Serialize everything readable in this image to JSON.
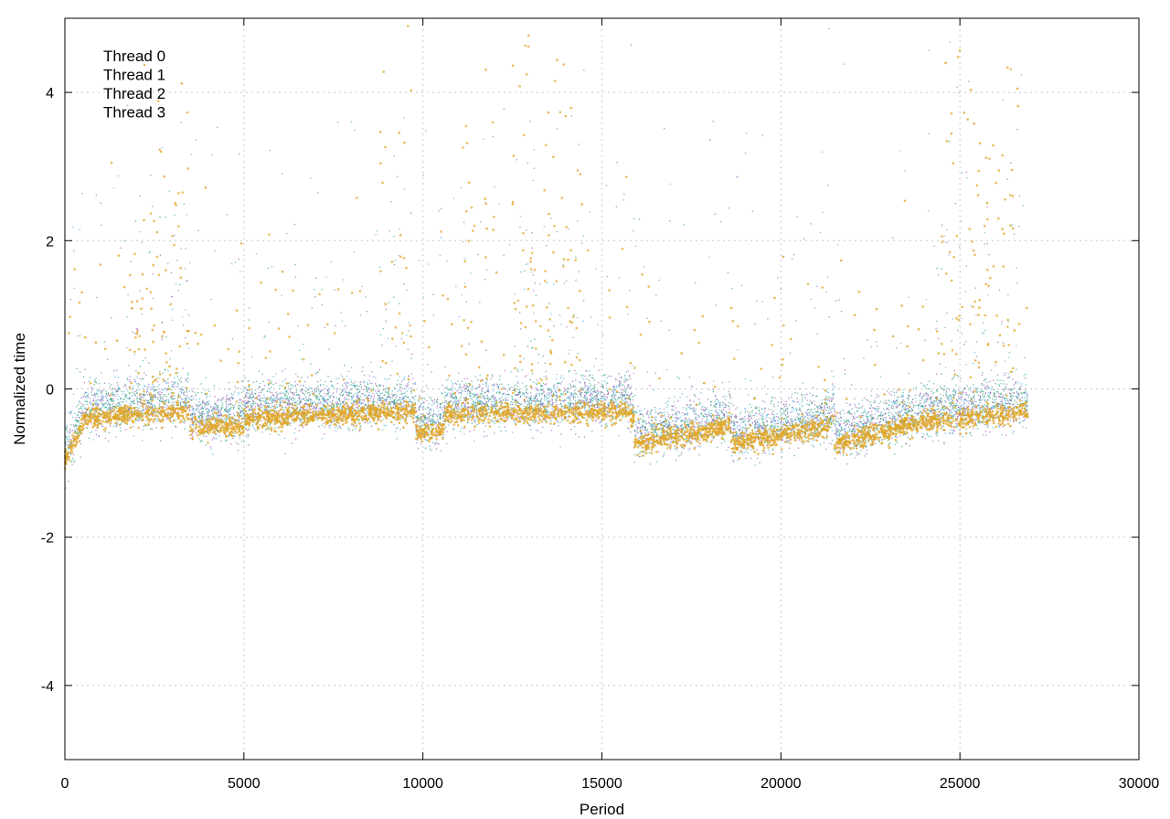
{
  "chart_data": {
    "type": "scatter",
    "title": "",
    "xlabel": "Period",
    "ylabel": "Normalized time",
    "xlim": [
      0,
      30000
    ],
    "ylim": [
      -5,
      5
    ],
    "grid": true,
    "legend_placement": "top-left",
    "x_ticks": [
      "0",
      "5000",
      "10000",
      "15000",
      "20000",
      "25000",
      "30000"
    ],
    "y_ticks": [
      "-4",
      "-2",
      "0",
      "2",
      "4"
    ],
    "series": [
      {
        "name": "Thread 0",
        "color": "#9b59b6"
      },
      {
        "name": "Thread 1",
        "color": "#2e9e6e"
      },
      {
        "name": "Thread 2",
        "color": "#3fa9d6"
      },
      {
        "name": "Thread 3",
        "color": "#e0a526"
      }
    ],
    "data_extent": {
      "x_max": 26900
    },
    "baseline_segments": [
      {
        "x_start": 0,
        "x_end": 500,
        "y_start": -1.0,
        "y_end": -0.5
      },
      {
        "x_start": 500,
        "x_end": 3500,
        "y_start": -0.4,
        "y_end": -0.3
      },
      {
        "x_start": 3500,
        "x_end": 5000,
        "y_start": -0.5,
        "y_end": -0.5
      },
      {
        "x_start": 5000,
        "x_end": 9800,
        "y_start": -0.4,
        "y_end": -0.3
      },
      {
        "x_start": 9800,
        "x_end": 10600,
        "y_start": -0.6,
        "y_end": -0.55
      },
      {
        "x_start": 10600,
        "x_end": 15800,
        "y_start": -0.35,
        "y_end": -0.3
      },
      {
        "x_start": 15900,
        "x_end": 18600,
        "y_start": -0.75,
        "y_end": -0.5
      },
      {
        "x_start": 18600,
        "x_end": 21400,
        "y_start": -0.75,
        "y_end": -0.5
      },
      {
        "x_start": 21500,
        "x_end": 24300,
        "y_start": -0.75,
        "y_end": -0.4
      },
      {
        "x_start": 24300,
        "x_end": 26900,
        "y_start": -0.45,
        "y_end": -0.3
      }
    ],
    "burst_regions": [
      {
        "x_start": 1800,
        "x_end": 3500,
        "y_max": 3.0
      },
      {
        "x_start": 8800,
        "x_end": 9700,
        "y_max": 5.0
      },
      {
        "x_start": 11000,
        "x_end": 12000,
        "y_max": 5.0
      },
      {
        "x_start": 12500,
        "x_end": 14500,
        "y_max": 5.0
      },
      {
        "x_start": 24300,
        "x_end": 26700,
        "y_max": 5.0
      }
    ]
  }
}
